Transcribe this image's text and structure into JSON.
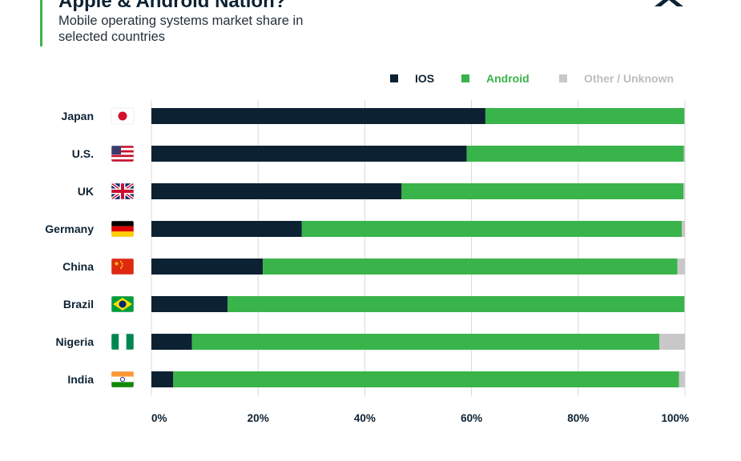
{
  "header": {
    "title": "Apple & Android Nation?",
    "subtitle": "Mobile operating systems market share in selected countries"
  },
  "colors": {
    "ios": "#0c2233",
    "android": "#39b44a",
    "other": "#c8c8c8",
    "grid": "#d9d9d9",
    "accent": "#3bb54a"
  },
  "chart_data": {
    "type": "bar",
    "orientation": "horizontal",
    "stacked": true,
    "categories": [
      "Japan",
      "U.S.",
      "UK",
      "Germany",
      "China",
      "Brazil",
      "Nigeria",
      "India"
    ],
    "category_icons": [
      "flag-japan",
      "flag-usa",
      "flag-uk",
      "flag-germany",
      "flag-china",
      "flag-brazil",
      "flag-nigeria",
      "flag-india"
    ],
    "series": [
      {
        "name": "IOS",
        "values": [
          62.6,
          59.1,
          46.9,
          28.2,
          20.9,
          14.3,
          7.6,
          4.1
        ]
      },
      {
        "name": "Android",
        "values": [
          37.3,
          40.7,
          52.8,
          71.2,
          77.7,
          85.6,
          87.6,
          94.8
        ]
      },
      {
        "name": "Other / Unknown",
        "values": [
          0.1,
          0.2,
          0.3,
          0.6,
          1.4,
          0.1,
          4.8,
          1.1
        ]
      }
    ],
    "xlim": [
      0,
      100
    ],
    "xticks": [
      "0%",
      "20%",
      "40%",
      "60%",
      "80%",
      "100%"
    ],
    "grid": true,
    "legend_position": "top-right"
  }
}
